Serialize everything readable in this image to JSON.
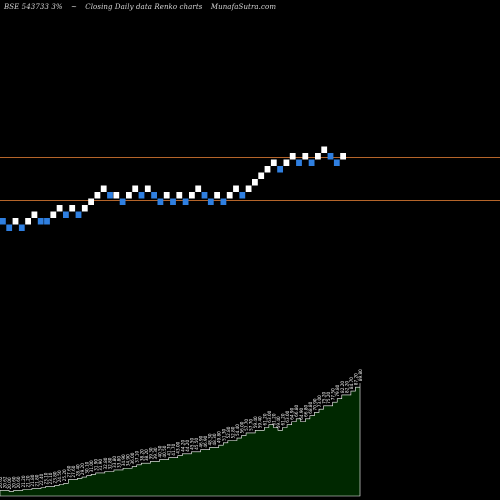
{
  "header": {
    "symbol": "BSE 543733 3%",
    "separator": "~",
    "chart_desc": "Closing Daily data Renko charts",
    "site": "MunafaSutra.com"
  },
  "colors": {
    "background": "#000000",
    "up_brick": "#ffffff",
    "down_brick": "#2f7fe0",
    "hline": "#b5652a",
    "volume_fill": "#002800",
    "volume_stroke": "#ffffff",
    "text": "#d8d8d8"
  },
  "chart_data": {
    "type": "renko",
    "title": "BSE 543733 3% ~ Closing Daily data Renko charts MunafaSutra.com",
    "brick_size_pct": 3,
    "bricks": [
      {
        "level": 0,
        "dir": "down"
      },
      {
        "level": -1,
        "dir": "down"
      },
      {
        "level": 0,
        "dir": "up"
      },
      {
        "level": -1,
        "dir": "down"
      },
      {
        "level": 0,
        "dir": "up"
      },
      {
        "level": 1,
        "dir": "up"
      },
      {
        "level": 0,
        "dir": "down"
      },
      {
        "level": 0,
        "dir": "down"
      },
      {
        "level": 1,
        "dir": "up"
      },
      {
        "level": 2,
        "dir": "up"
      },
      {
        "level": 1,
        "dir": "down"
      },
      {
        "level": 2,
        "dir": "up"
      },
      {
        "level": 1,
        "dir": "down"
      },
      {
        "level": 2,
        "dir": "up"
      },
      {
        "level": 3,
        "dir": "up"
      },
      {
        "level": 4,
        "dir": "up"
      },
      {
        "level": 5,
        "dir": "up"
      },
      {
        "level": 4,
        "dir": "down"
      },
      {
        "level": 4,
        "dir": "up"
      },
      {
        "level": 3,
        "dir": "down"
      },
      {
        "level": 4,
        "dir": "up"
      },
      {
        "level": 5,
        "dir": "up"
      },
      {
        "level": 4,
        "dir": "down"
      },
      {
        "level": 5,
        "dir": "up"
      },
      {
        "level": 4,
        "dir": "down"
      },
      {
        "level": 3,
        "dir": "down"
      },
      {
        "level": 4,
        "dir": "up"
      },
      {
        "level": 3,
        "dir": "down"
      },
      {
        "level": 4,
        "dir": "up"
      },
      {
        "level": 3,
        "dir": "down"
      },
      {
        "level": 4,
        "dir": "up"
      },
      {
        "level": 5,
        "dir": "up"
      },
      {
        "level": 4,
        "dir": "down"
      },
      {
        "level": 3,
        "dir": "down"
      },
      {
        "level": 4,
        "dir": "up"
      },
      {
        "level": 3,
        "dir": "down"
      },
      {
        "level": 4,
        "dir": "up"
      },
      {
        "level": 5,
        "dir": "up"
      },
      {
        "level": 4,
        "dir": "down"
      },
      {
        "level": 5,
        "dir": "up"
      },
      {
        "level": 6,
        "dir": "up"
      },
      {
        "level": 7,
        "dir": "up"
      },
      {
        "level": 8,
        "dir": "up"
      },
      {
        "level": 9,
        "dir": "up"
      },
      {
        "level": 8,
        "dir": "down"
      },
      {
        "level": 9,
        "dir": "up"
      },
      {
        "level": 10,
        "dir": "up"
      },
      {
        "level": 9,
        "dir": "down"
      },
      {
        "level": 10,
        "dir": "up"
      },
      {
        "level": 9,
        "dir": "down"
      },
      {
        "level": 10,
        "dir": "up"
      },
      {
        "level": 11,
        "dir": "up"
      },
      {
        "level": 10,
        "dir": "down"
      },
      {
        "level": 9,
        "dir": "down"
      },
      {
        "level": 10,
        "dir": "up"
      }
    ],
    "hlines": [
      {
        "level": 9.8
      },
      {
        "level": 3.2
      }
    ],
    "volume_labels": [
      "20.62",
      "20.62",
      "20.00",
      "20.60",
      "20.60",
      "21.20",
      "21.20",
      "21.80",
      "21.80",
      "22.40",
      "23.10",
      "23.10",
      "23.80",
      "24.50",
      "25.20",
      "27.60",
      "27.60",
      "28.40",
      "29.20",
      "30.10",
      "31.00",
      "31.90",
      "31.90",
      "32.80",
      "32.80",
      "33.80",
      "33.80",
      "34.90",
      "34.90",
      "36.00",
      "37.10",
      "38.20",
      "38.20",
      "39.30",
      "39.30",
      "40.50",
      "40.50",
      "41.70",
      "41.70",
      "43.00",
      "44.20",
      "44.20",
      "45.50",
      "45.50",
      "46.90",
      "46.90",
      "48.30",
      "48.30",
      "49.80",
      "51.30",
      "52.80",
      "52.80",
      "54.40",
      "56.00",
      "57.70",
      "57.70",
      "59.40",
      "59.40",
      "61.20",
      "63.00",
      "61.20",
      "59.40",
      "61.20",
      "63.00",
      "64.90",
      "66.80",
      "64.90",
      "66.80",
      "68.80",
      "70.90",
      "73.00",
      "75.20",
      "75.20",
      "77.50",
      "79.80",
      "82.20",
      "82.20",
      "84.70",
      "87.20",
      "89.80"
    ]
  }
}
